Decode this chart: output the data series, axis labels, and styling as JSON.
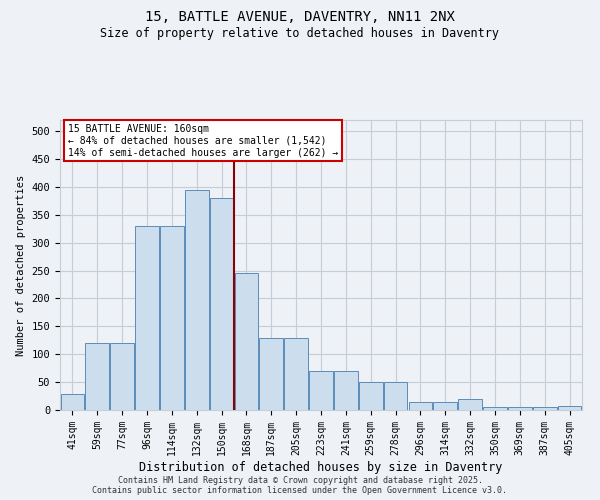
{
  "title_line1": "15, BATTLE AVENUE, DAVENTRY, NN11 2NX",
  "title_line2": "Size of property relative to detached houses in Daventry",
  "xlabel": "Distribution of detached houses by size in Daventry",
  "ylabel": "Number of detached properties",
  "bar_labels": [
    "41sqm",
    "59sqm",
    "77sqm",
    "96sqm",
    "114sqm",
    "132sqm",
    "150sqm",
    "168sqm",
    "187sqm",
    "205sqm",
    "223sqm",
    "241sqm",
    "259sqm",
    "278sqm",
    "296sqm",
    "314sqm",
    "332sqm",
    "350sqm",
    "369sqm",
    "387sqm",
    "405sqm"
  ],
  "bar_values": [
    28,
    120,
    120,
    330,
    330,
    395,
    380,
    245,
    130,
    130,
    70,
    70,
    50,
    50,
    15,
    15,
    20,
    5,
    5,
    5,
    8
  ],
  "bar_color": "#ccdded",
  "bar_edge_color": "#5b8db8",
  "vline_color": "#8b0000",
  "vline_pos": 7,
  "ylim": [
    0,
    520
  ],
  "yticks": [
    0,
    50,
    100,
    150,
    200,
    250,
    300,
    350,
    400,
    450,
    500
  ],
  "annotation_title": "15 BATTLE AVENUE: 160sqm",
  "annotation_line2": "← 84% of detached houses are smaller (1,542)",
  "annotation_line3": "14% of semi-detached houses are larger (262) →",
  "annotation_box_facecolor": "#ffffff",
  "annotation_box_edgecolor": "#cc0000",
  "footer_line1": "Contains HM Land Registry data © Crown copyright and database right 2025.",
  "footer_line2": "Contains public sector information licensed under the Open Government Licence v3.0.",
  "bg_color": "#eef2f6",
  "grid_color": "#c5cdd6"
}
